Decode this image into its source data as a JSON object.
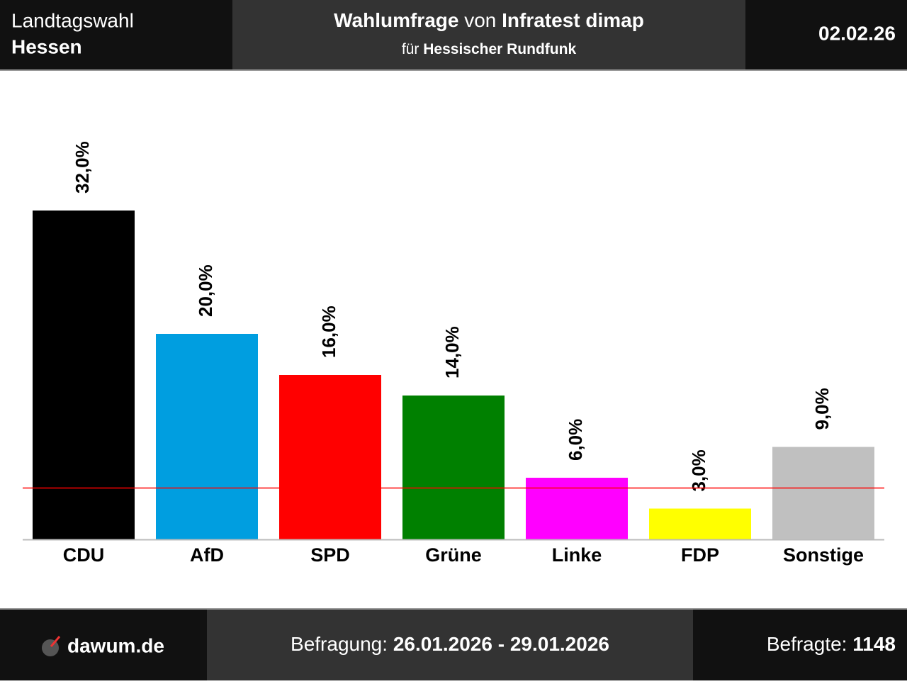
{
  "header": {
    "election": "Landtagswahl",
    "state": "Hessen",
    "title_a": "Wahlumfrage",
    "title_b": "von",
    "title_c": "Infratest dimap",
    "sub_a": "für",
    "sub_b": "Hessischer Rundfunk",
    "date": "02.02.26"
  },
  "chart_data": {
    "type": "bar",
    "categories": [
      "CDU",
      "AfD",
      "SPD",
      "Grüne",
      "Linke",
      "FDP",
      "Sonstige"
    ],
    "values": [
      32,
      20,
      16,
      14,
      6,
      3,
      9
    ],
    "value_labels": [
      "32,0%",
      "20,0%",
      "16,0%",
      "14,0%",
      "6,0%",
      "3,0%",
      "9,0%"
    ],
    "colors": [
      "#000000",
      "#009ee0",
      "#ff0000",
      "#008000",
      "#ff00ff",
      "#ffff00",
      "#c0c0c0"
    ],
    "threshold": 5,
    "threshold_color": "#ff0000"
  },
  "footer": {
    "site": "dawum.de",
    "period_label": "Befragung:",
    "period": "26.01.2026 - 29.01.2026",
    "sample_label": "Befragte:",
    "sample": "1148"
  }
}
